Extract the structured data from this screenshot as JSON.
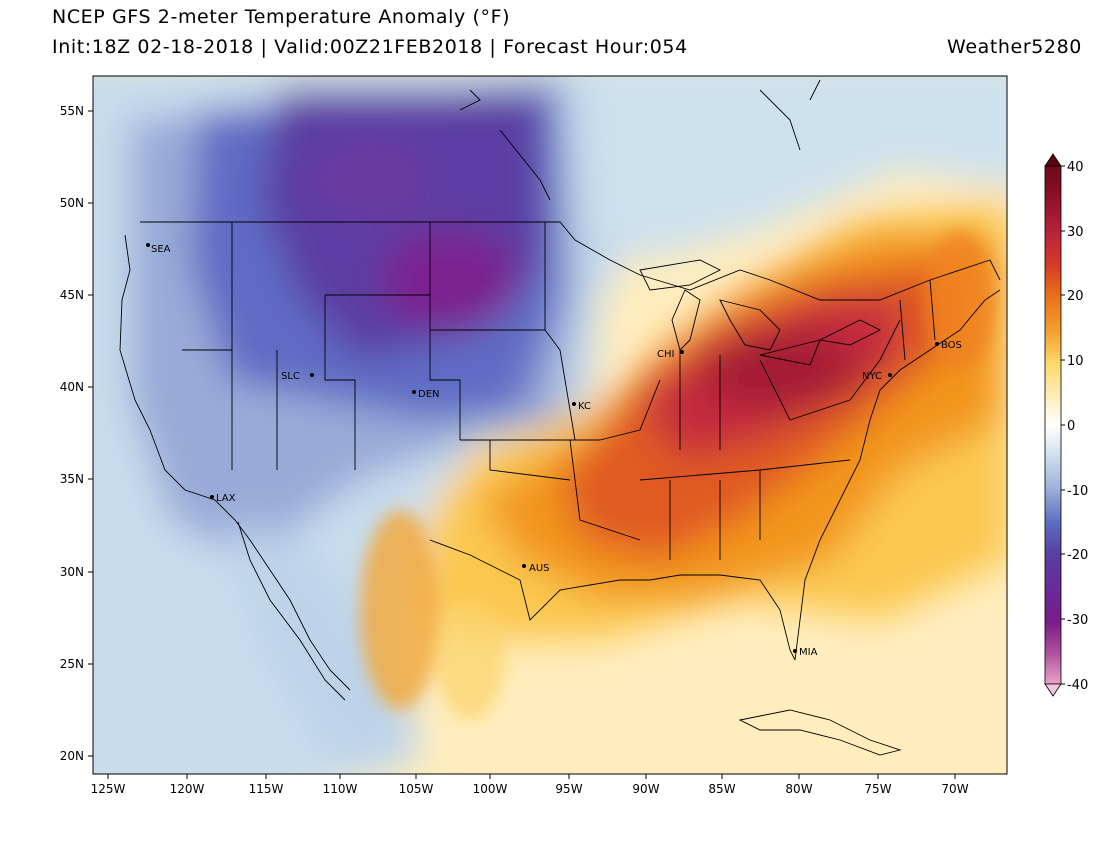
{
  "header": {
    "title": "NCEP GFS 2-meter Temperature Anomaly (°F)",
    "subtitle": "Init:18Z 02-18-2018 | Valid:00Z21FEB2018 | Forecast Hour:054",
    "credit": "Weather5280"
  },
  "map": {
    "lon_ticks": [
      "125W",
      "120W",
      "115W",
      "110W",
      "105W",
      "100W",
      "95W",
      "90W",
      "85W",
      "80W",
      "75W",
      "70W"
    ],
    "lat_ticks": [
      "55N",
      "50N",
      "45N",
      "40N",
      "35N",
      "30N",
      "25N",
      "20N"
    ],
    "cities": [
      {
        "name": "SEA"
      },
      {
        "name": "SLC"
      },
      {
        "name": "DEN"
      },
      {
        "name": "LAX"
      },
      {
        "name": "KC"
      },
      {
        "name": "CHI"
      },
      {
        "name": "AUS"
      },
      {
        "name": "NYC"
      },
      {
        "name": "BOS"
      },
      {
        "name": "MIA"
      }
    ]
  },
  "colorbar": {
    "labels": [
      "40",
      "30",
      "20",
      "10",
      "0",
      "-10",
      "-20",
      "-30",
      "-40"
    ],
    "colors": {
      "cold_extreme": "#e9a3c9",
      "cold_purple": "#7a1a8a",
      "cold_violet": "#5a3fa0",
      "cold_blue": "#5c6cc0",
      "cool_blue": "#9fb3dc",
      "cool_light": "#d7e6f0",
      "neutral": "#ffffff",
      "warm_light": "#ffefc0",
      "warm_yellow": "#fdd86a",
      "warm_orange": "#f4a030",
      "hot_orange": "#e8701a",
      "hot_red": "#d63a2a",
      "hot_crimson": "#b4203c",
      "hot_max": "#6a0a1a"
    }
  }
}
